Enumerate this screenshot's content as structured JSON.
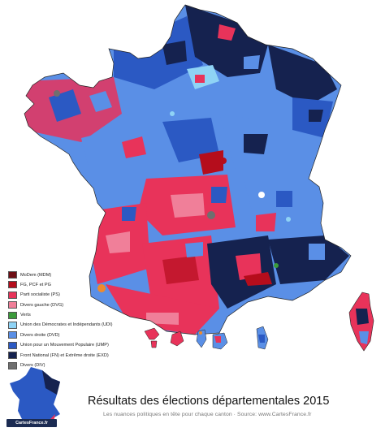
{
  "title": "Résultats des élections départementales 2015",
  "subtitle": "Les nuances politiques en tête pour chaque canton · Source: www.CartesFrance.fr",
  "logo_text": "CartesFrance.fr",
  "legend": [
    {
      "label": "MoDem (MDM)",
      "color": "#6e0f15"
    },
    {
      "label": "FG, PCF et PG",
      "color": "#b50d1c"
    },
    {
      "label": "Parti socialiste (PS)",
      "color": "#e8335a"
    },
    {
      "label": "Divers gauche (DVG)",
      "color": "#f07f99"
    },
    {
      "label": "Verts",
      "color": "#3b9b3a"
    },
    {
      "label": "Union des Démocrates et Indépendants (UDI)",
      "color": "#8fd3f5"
    },
    {
      "label": "Divers droite (DVD)",
      "color": "#5a8fe6"
    },
    {
      "label": "Union pour un Mouvement Populaire (UMP)",
      "color": "#2b59c3"
    },
    {
      "label": "Front National (FN) et Extrême droite (EXD)",
      "color": "#15224f"
    },
    {
      "label": "Divers (DIV)",
      "color": "#6f6f6f"
    }
  ]
}
